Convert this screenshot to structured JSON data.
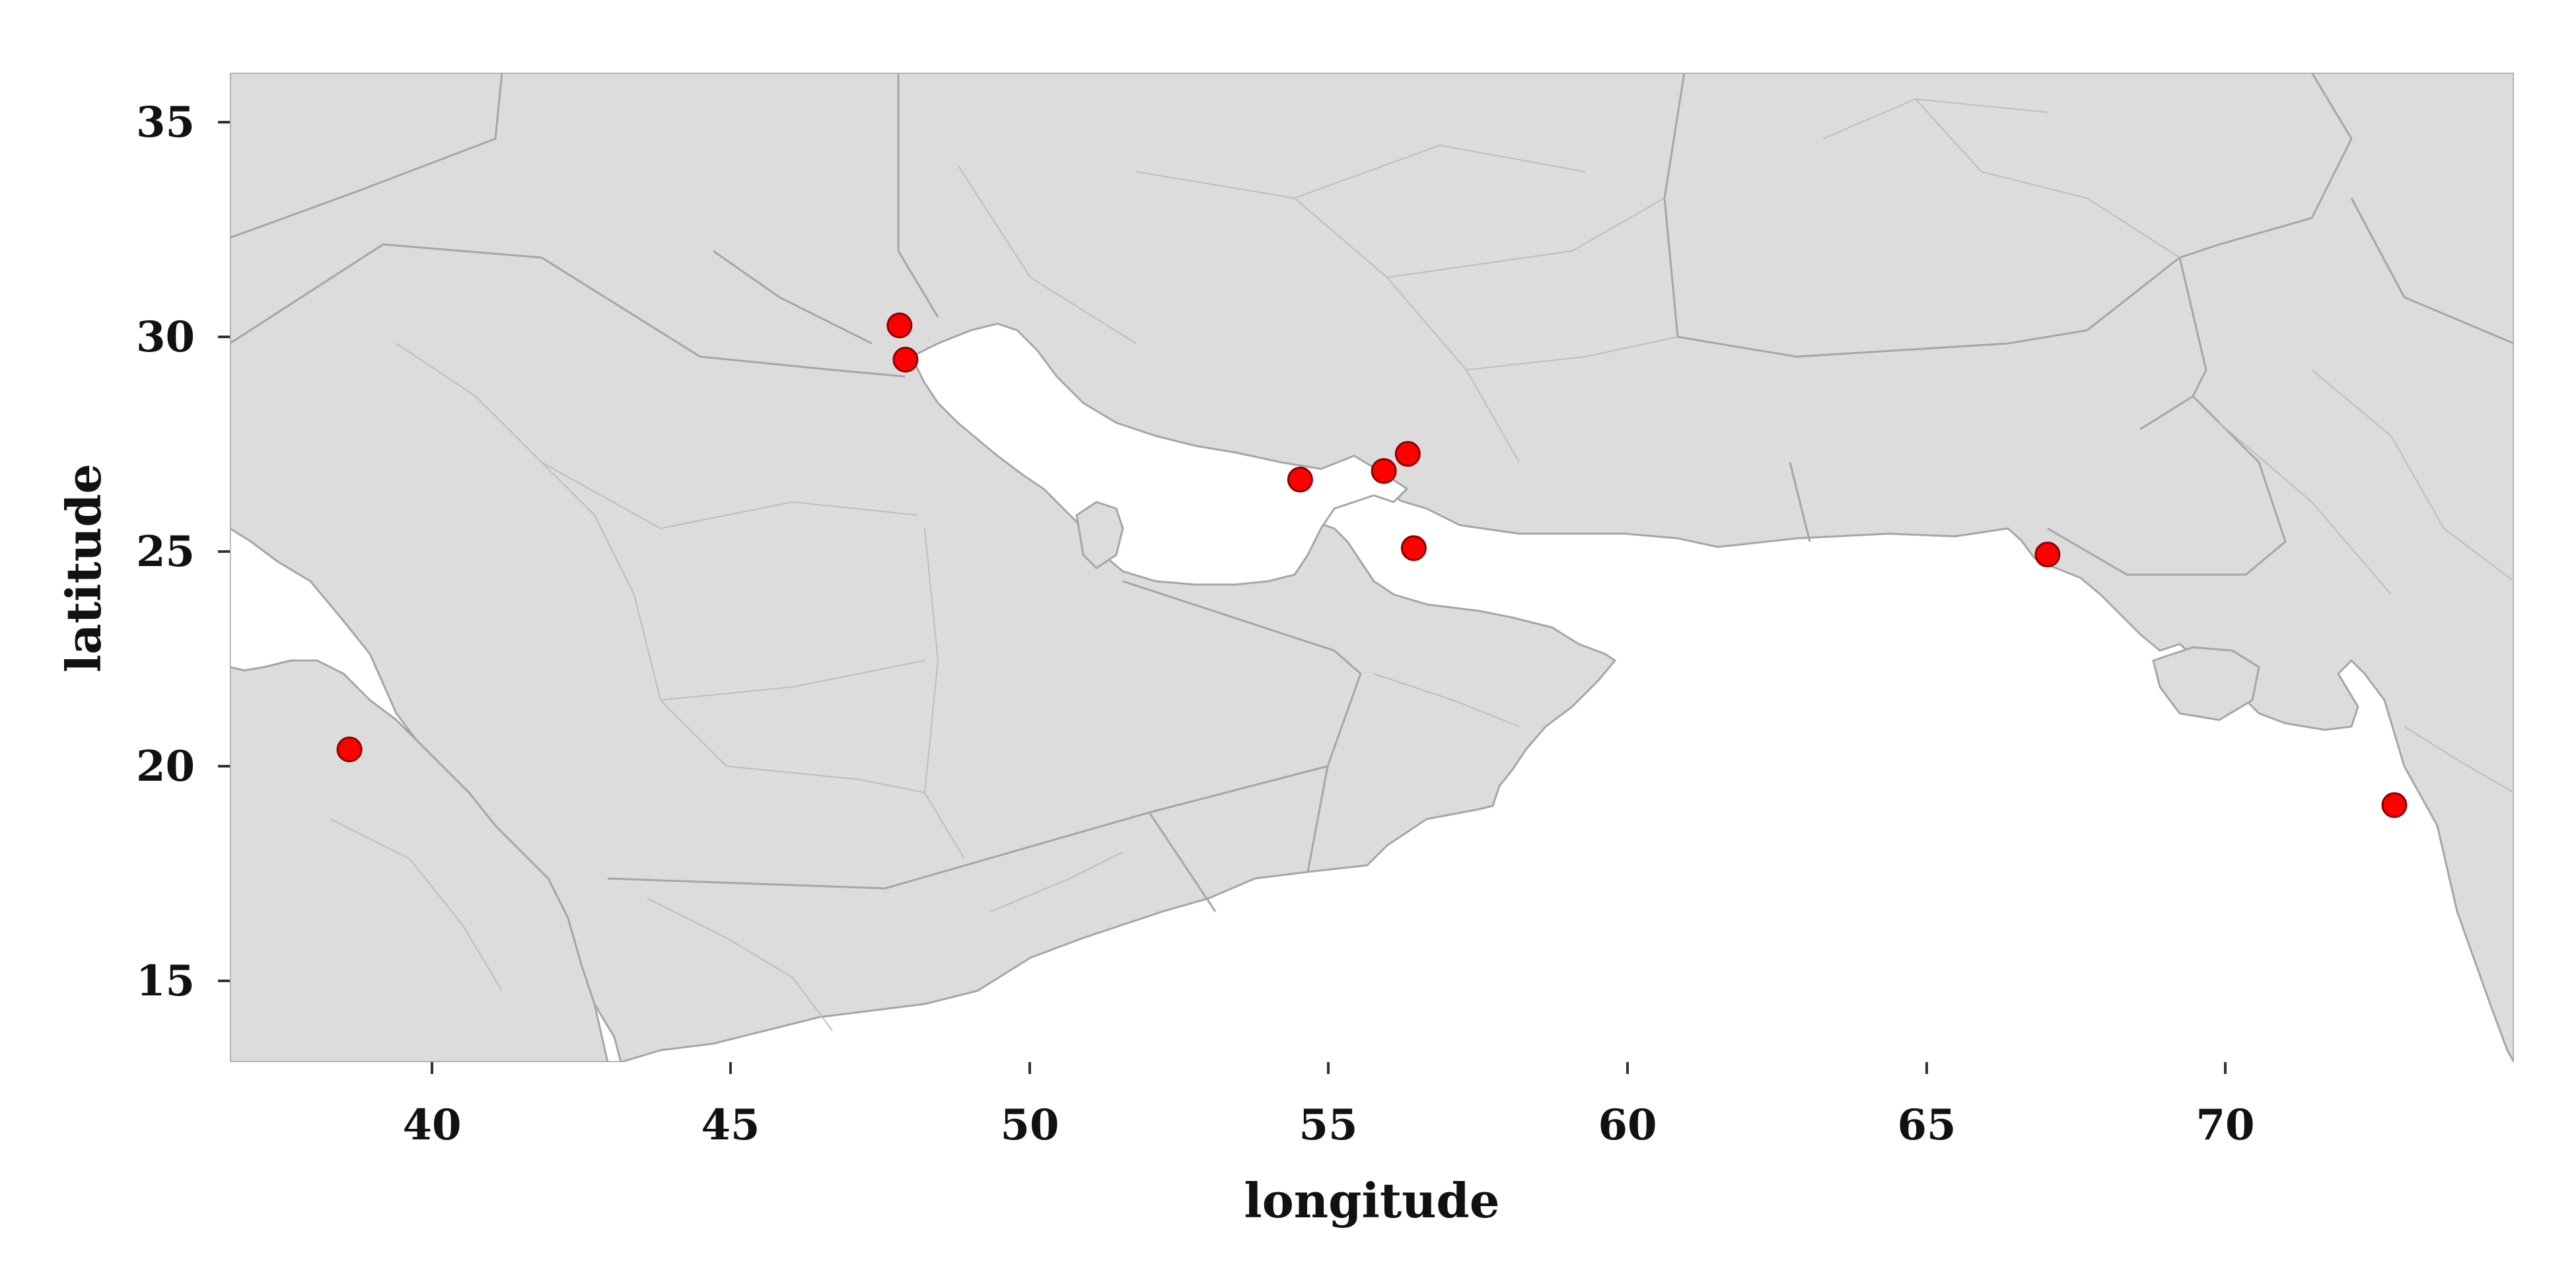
{
  "map": {
    "xlabel": "longitude",
    "ylabel": "latitude",
    "lon_range": [
      36.6,
      74.8
    ],
    "lat_range": [
      13.0,
      36.1
    ],
    "x_ticks": [
      40,
      45,
      50,
      55,
      60,
      65,
      70
    ],
    "y_ticks": [
      15,
      20,
      25,
      30,
      35
    ],
    "land_color": "#dcdcdc",
    "border_color": "#a6a6a6",
    "sea_color": "#ffffff",
    "marker_color": "#ff0000",
    "marker_edge_color": "#8b0000",
    "points": [
      {
        "lon": 47.8,
        "lat": 30.2
      },
      {
        "lon": 47.9,
        "lat": 29.4
      },
      {
        "lon": 54.5,
        "lat": 26.6
      },
      {
        "lon": 55.9,
        "lat": 26.8
      },
      {
        "lon": 56.3,
        "lat": 27.2
      },
      {
        "lon": 56.4,
        "lat": 25.0
      },
      {
        "lon": 67.0,
        "lat": 24.85
      },
      {
        "lon": 72.8,
        "lat": 19.0
      },
      {
        "lon": 38.6,
        "lat": 20.3
      }
    ]
  }
}
